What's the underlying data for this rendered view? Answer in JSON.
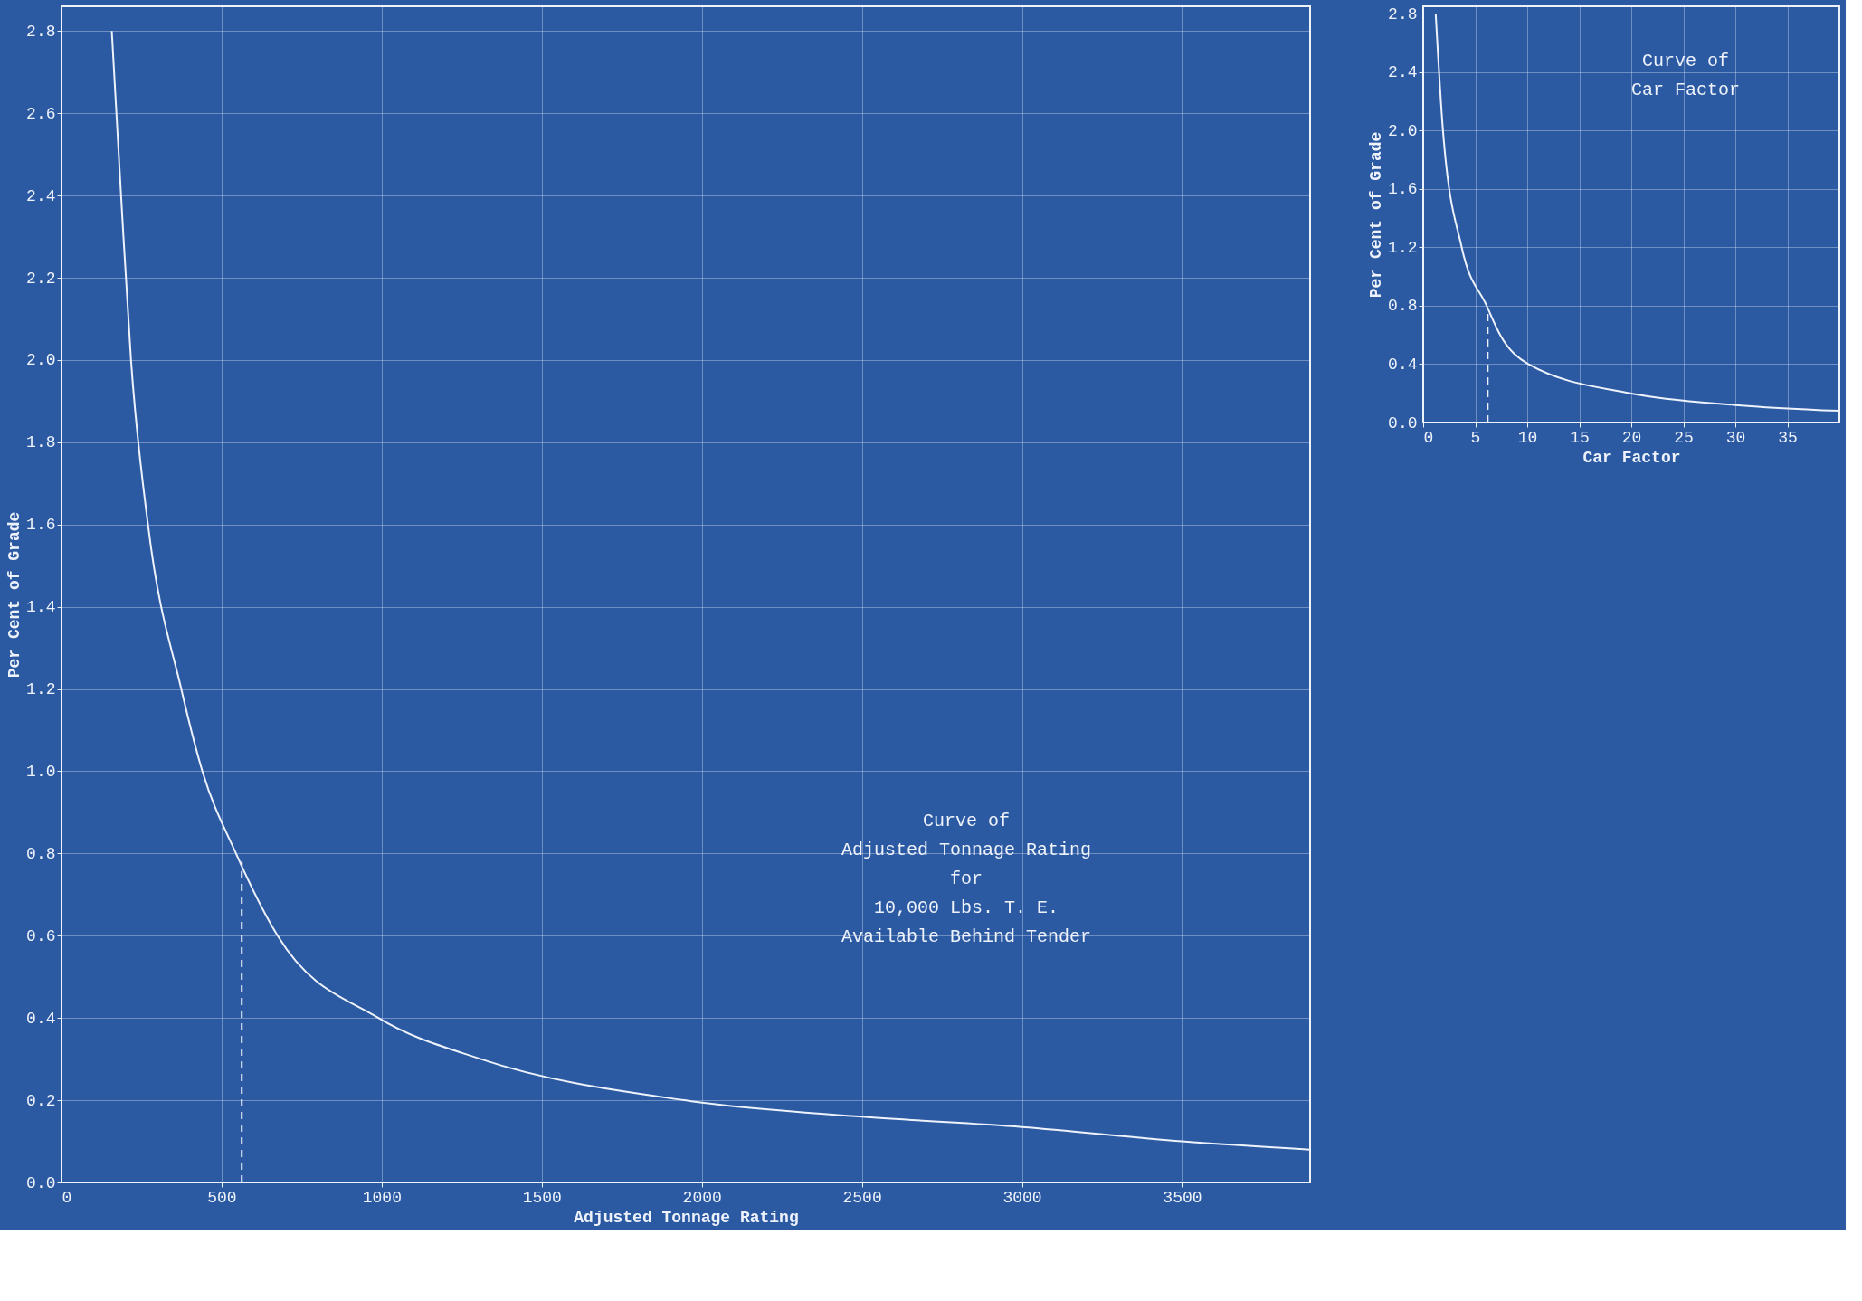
{
  "chart_data": [
    {
      "type": "line",
      "xlabel": "Adjusted Tonnage Rating",
      "ylabel": "Per Cent of Grade",
      "annotations": [
        "Curve of",
        "Adjusted Tonnage Rating",
        "for",
        "10,000 Lbs. T. E.",
        "Available Behind Tender"
      ],
      "xlim": [
        0,
        3900
      ],
      "ylim": [
        0,
        2.86
      ],
      "xticks": [
        0,
        500,
        1000,
        1500,
        2000,
        2500,
        3000,
        3500
      ],
      "yticks": [
        {
          "value": 0,
          "label": "0.0"
        },
        0.2,
        0.4,
        0.6,
        0.8,
        {
          "value": 1,
          "label": "1.0"
        },
        1.2,
        1.4,
        1.6,
        1.8,
        {
          "value": 2,
          "label": "2.0"
        },
        2.2,
        2.4,
        2.6,
        2.8
      ],
      "grid": true,
      "series": [
        {
          "color": "#eef2fa",
          "line_style": "solid",
          "x": [
            157,
            186,
            217,
            270,
            374,
            440,
            545,
            675,
            990,
            1310,
            1945,
            2500,
            3000,
            3500,
            3900
          ],
          "values": [
            2.8,
            2.4,
            2.0,
            1.6,
            1.2,
            1.0,
            0.8,
            0.6,
            0.4,
            0.3,
            0.2,
            0.16,
            0.135,
            0.1,
            0.08
          ]
        },
        {
          "color": "#eef2fa",
          "line_style": "dashed",
          "x": [
            563,
            563
          ],
          "values": [
            0,
            0.78
          ]
        }
      ]
    },
    {
      "type": "line",
      "xlabel": "Car Factor",
      "ylabel": "Per Cent of Grade",
      "annotations": [
        "Curve of",
        "Car Factor"
      ],
      "xlim": [
        0,
        40
      ],
      "ylim": [
        0,
        2.85
      ],
      "xticks": [
        0,
        5,
        10,
        15,
        20,
        25,
        30,
        35
      ],
      "yticks": [
        {
          "value": 0,
          "label": "0.0"
        },
        0.4,
        0.8,
        1.2,
        1.6,
        {
          "value": 2,
          "label": "2.0"
        },
        2.4,
        2.8
      ],
      "grid": true,
      "series": [
        {
          "color": "#eef2fa",
          "line_style": "solid",
          "x": [
            1.2,
            1.9,
            3.7,
            6.1,
            7.4,
            10.1,
            19.9,
            30,
            40
          ],
          "values": [
            2.8,
            2.0,
            1.2,
            0.8,
            0.6,
            0.4,
            0.2,
            0.12,
            0.08
          ]
        },
        {
          "color": "#eef2fa",
          "line_style": "dashed",
          "x": [
            6.2,
            6.2
          ],
          "values": [
            0,
            0.78
          ]
        }
      ]
    }
  ]
}
